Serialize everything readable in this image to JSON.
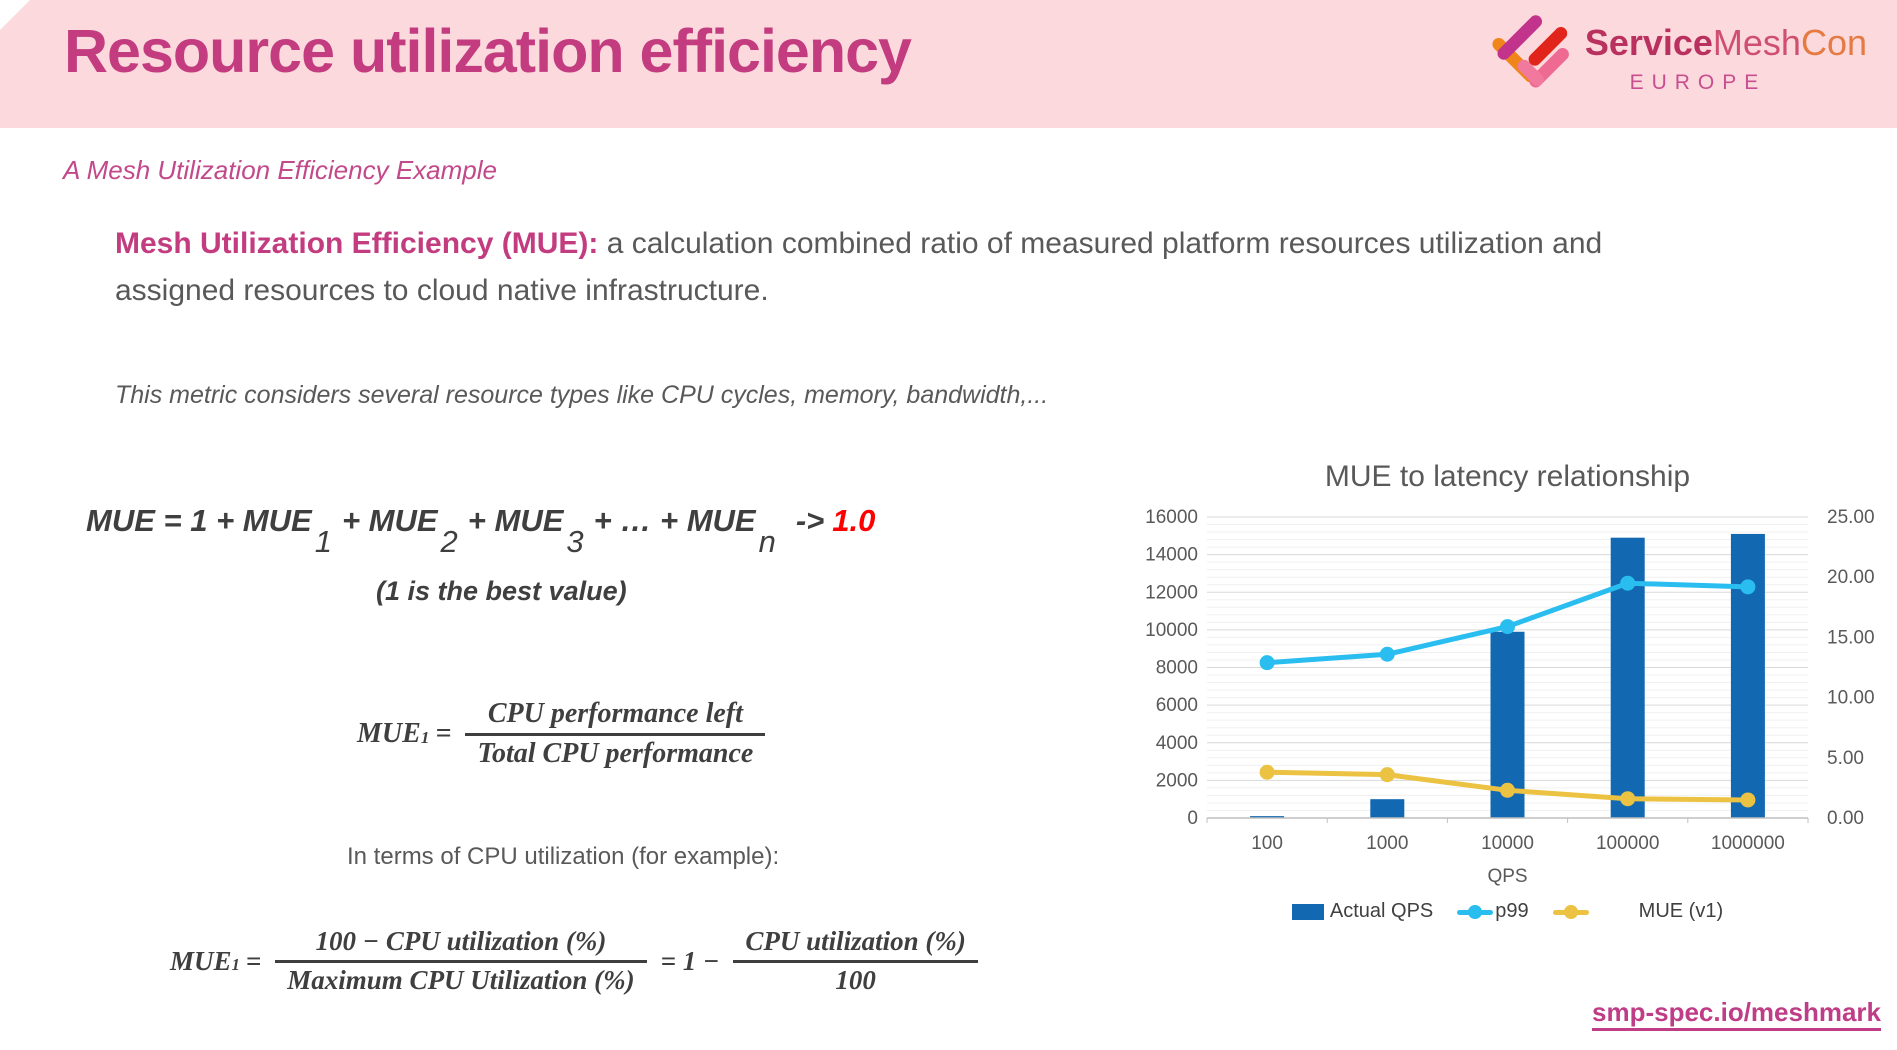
{
  "header": {
    "title": "Resource utilization efficiency",
    "brand": {
      "part1": "Service",
      "part2": "Mesh",
      "part3": "Con",
      "region": "EUROPE"
    }
  },
  "subtitle": "A Mesh Utilization Efficiency Example",
  "intro": {
    "lead": "Mesh Utilization Efficiency (MUE):",
    "rest": " a calculation combined ratio of measured platform resources utilization and assigned resources to cloud native infrastructure."
  },
  "note": "This metric considers several resource types like CPU cycles, memory, bandwidth,...",
  "mue_formula": {
    "lhs": "MUE",
    "eq": " = 1 + MUE",
    "sub1": "1",
    "t2": "+ MUE",
    "sub2": "2",
    "t3": "+ MUE",
    "sub3": "3",
    "t4": "+ … + MUE",
    "subn": "n",
    "arrow": "->",
    "target": "1.0",
    "annotation": "(1 is the best value)"
  },
  "formula_cpu": {
    "lhs": "MUE",
    "lhs_sub": "1",
    "eq": "=",
    "num": "CPU performance left",
    "den": "Total CPU performance"
  },
  "cpu_note": "In terms of CPU utilization (for example):",
  "formula_util": {
    "lhs": "MUE",
    "lhs_sub": "1",
    "eq": "=",
    "num1": "100 − CPU utilization (%)",
    "den1": "Maximum CPU Utilization (%)",
    "mid": "= 1 −",
    "num2": "CPU utilization (%)",
    "den2": "100"
  },
  "link_text": "smp-spec.io/meshmark",
  "chart_data": {
    "type": "combo",
    "title": "MUE to latency relationship",
    "xlabel": "QPS",
    "categories": [
      "100",
      "1000",
      "10000",
      "100000",
      "1000000"
    ],
    "left_axis": {
      "min": 0,
      "max": 16000,
      "step": 2000,
      "minor_step": 400,
      "ticks": [
        "0",
        "2000",
        "4000",
        "6000",
        "8000",
        "10000",
        "12000",
        "14000",
        "16000"
      ]
    },
    "right_axis": {
      "min": 0,
      "max": 25,
      "step": 5,
      "ticks": [
        "0.00",
        "5.00",
        "10.00",
        "15.00",
        "20.00",
        "25.00"
      ]
    },
    "series": [
      {
        "name": "Actual QPS",
        "type": "bar",
        "axis": "left",
        "color": "#1268b1",
        "values": [
          100,
          1000,
          9900,
          14900,
          15100
        ]
      },
      {
        "name": "p99",
        "type": "line",
        "axis": "right",
        "color": "#29bdf0",
        "values": [
          12.9,
          13.6,
          15.9,
          19.5,
          19.2
        ]
      },
      {
        "name": "MUE (v1)",
        "type": "line",
        "axis": "right",
        "color": "#ecc242",
        "values": [
          3.8,
          3.6,
          2.3,
          1.6,
          1.5
        ]
      }
    ],
    "grid": true,
    "legend_position": "bottom"
  }
}
